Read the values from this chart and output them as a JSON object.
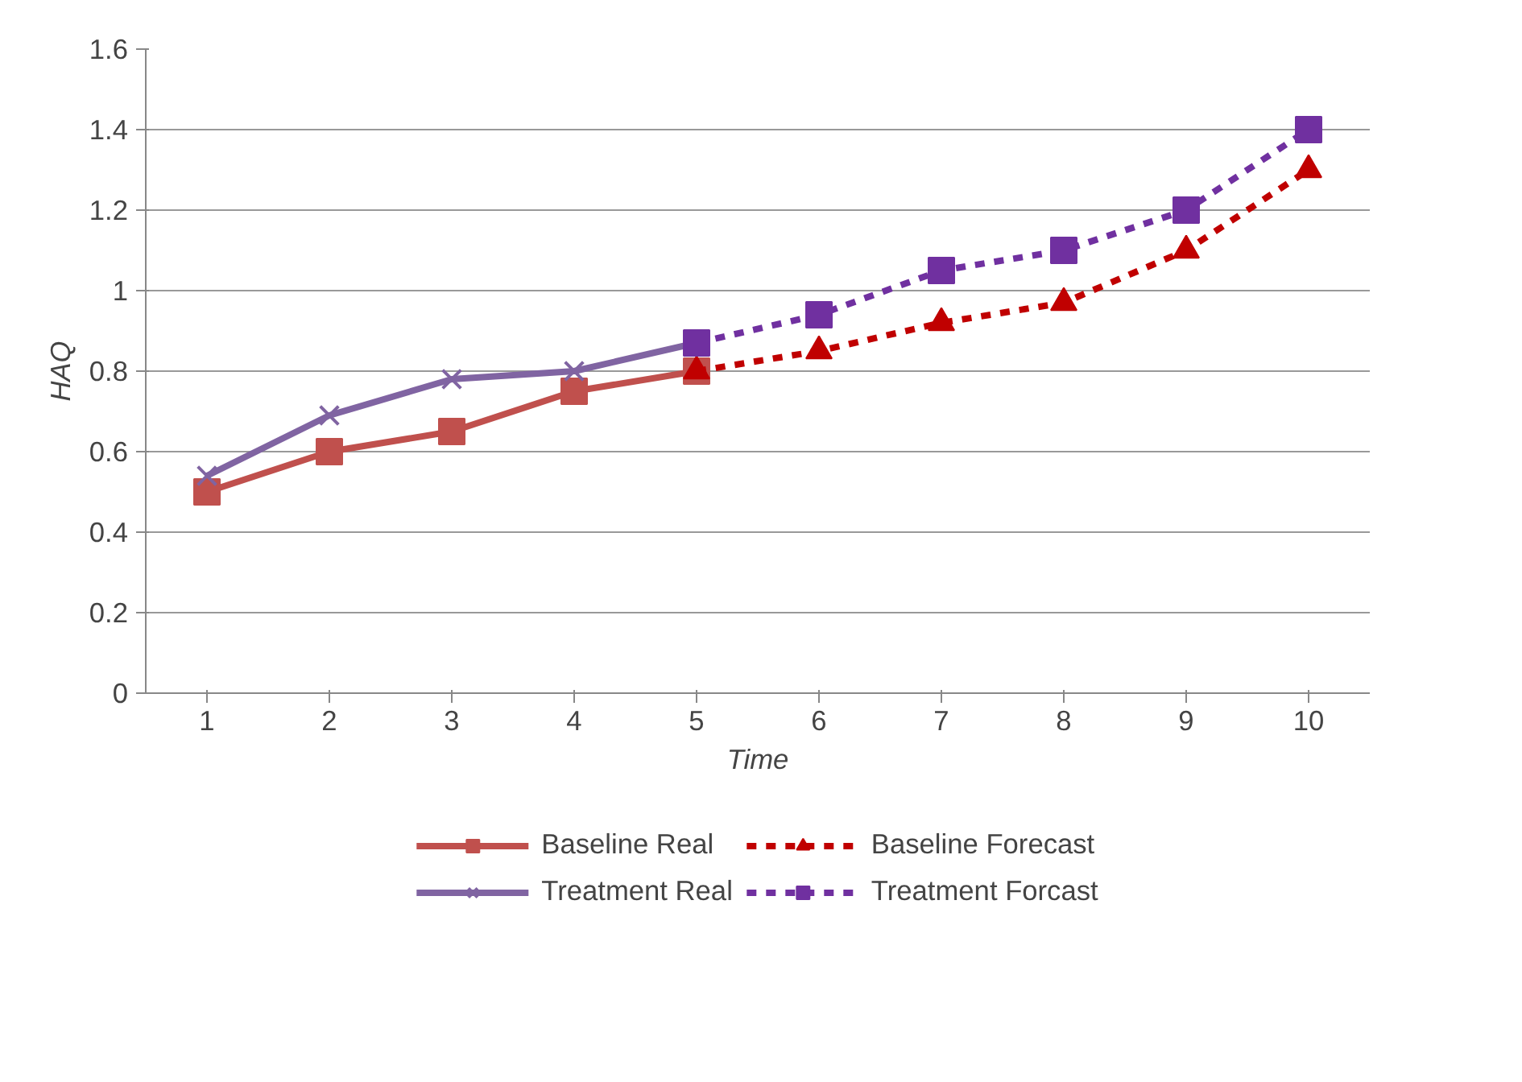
{
  "chart_data": {
    "type": "line",
    "xlabel": "Time",
    "ylabel": "HAQ",
    "xlim": [
      0.5,
      10.5
    ],
    "xticks": [
      1,
      2,
      3,
      4,
      5,
      6,
      7,
      8,
      9,
      10
    ],
    "ylim": [
      0,
      1.6
    ],
    "yticks": [
      0,
      0.2,
      0.4,
      0.6,
      0.8,
      1,
      1.2,
      1.4,
      1.6
    ],
    "grid": "y",
    "legend": "bottom",
    "series": [
      {
        "name": "Baseline Real",
        "color": "#c0504d",
        "marker": "square",
        "line_style": "solid",
        "x": [
          1,
          2,
          3,
          4,
          5
        ],
        "values": [
          0.5,
          0.6,
          0.65,
          0.75,
          0.8
        ]
      },
      {
        "name": "Baseline Forecast",
        "color": "#c00000",
        "marker": "triangle",
        "line_style": "dashed",
        "x": [
          5,
          6,
          7,
          8,
          9,
          10
        ],
        "values": [
          0.8,
          0.85,
          0.92,
          0.97,
          1.1,
          1.3
        ]
      },
      {
        "name": "Treatment Real",
        "color": "#8064a2",
        "marker": "cross",
        "line_style": "solid",
        "x": [
          1,
          2,
          3,
          4,
          5
        ],
        "values": [
          0.54,
          0.69,
          0.78,
          0.8,
          0.87
        ]
      },
      {
        "name": "Treatment Forcast",
        "color": "#7030a0",
        "marker": "square",
        "line_style": "dashed",
        "x": [
          5,
          6,
          7,
          8,
          9,
          10
        ],
        "values": [
          0.87,
          0.94,
          1.05,
          1.1,
          1.2,
          1.4
        ]
      }
    ]
  }
}
